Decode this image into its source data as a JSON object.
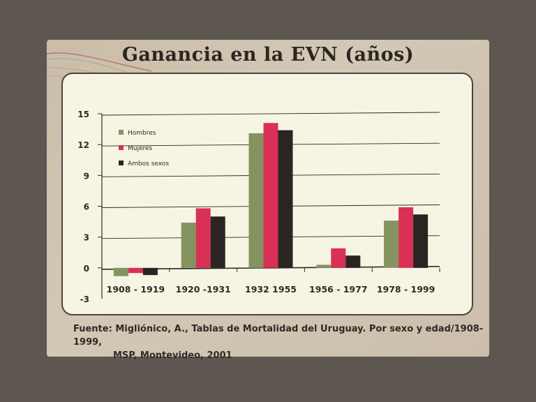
{
  "title": "Ganancia en la EVN (años)",
  "source": {
    "line1": "Fuente: Migliónico, A., Tablas de Mortalidad del Uruguay. Por sexo y edad/1908-1999,",
    "line2": "MSP, Montevideo, 2001"
  },
  "colors": {
    "hombres": "#84935f",
    "mujeres": "#d93055",
    "ambos": "#2a2523"
  },
  "chart_data": {
    "type": "bar",
    "title": "Ganancia en la EVN (años)",
    "categories": [
      "1908 - 1919",
      "1920 -1931",
      "1932 1955",
      "1956 - 1977",
      "1978 - 1999"
    ],
    "series": [
      {
        "name": "Hombres",
        "values": [
          -0.8,
          4.4,
          13.1,
          0.3,
          4.6
        ]
      },
      {
        "name": "Mujeres",
        "values": [
          -0.5,
          5.8,
          14.1,
          1.9,
          5.9
        ]
      },
      {
        "name": "Ambos sexos",
        "values": [
          -0.7,
          5.0,
          13.4,
          1.2,
          5.2
        ]
      }
    ],
    "ylim": [
      -3,
      15
    ],
    "yticks": [
      -3,
      0,
      3,
      6,
      9,
      12,
      15
    ],
    "ytick_labels": [
      "-3",
      "0",
      "3",
      "6",
      "9",
      "12",
      "15"
    ],
    "legend_position": "top-left",
    "grid": true
  }
}
